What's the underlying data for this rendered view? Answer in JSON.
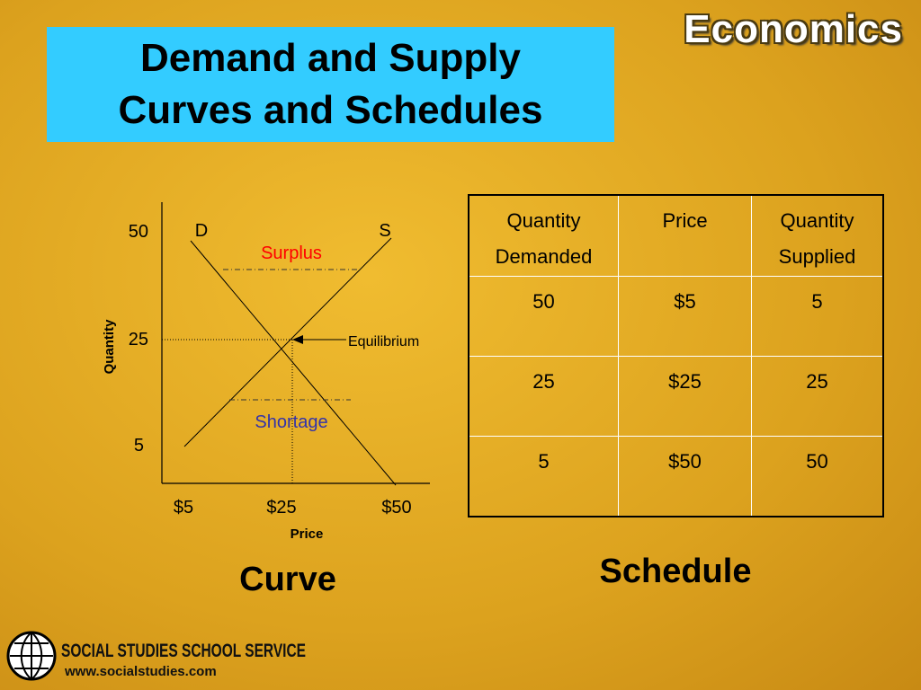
{
  "header": {
    "title_line1": "Demand and Supply",
    "title_line2": "Curves and Schedules",
    "badge": "Economics"
  },
  "curve": {
    "y_axis_label": "Quantity",
    "x_axis_label": "Price",
    "y_labels": [
      50,
      25,
      5
    ],
    "x_labels": [
      "$5",
      "$25",
      "$50"
    ],
    "demand_label": "D",
    "supply_label": "S",
    "surplus": "Surplus",
    "shortage": "Shortage",
    "equilibrium": "Equilibrium",
    "caption": "Curve"
  },
  "table": {
    "headers": [
      [
        "Quantity",
        "Demanded"
      ],
      [
        "Price"
      ],
      [
        "Quantity",
        "Supplied"
      ]
    ],
    "rows": [
      [
        50,
        "$5",
        5
      ],
      [
        25,
        "$25",
        25
      ],
      [
        5,
        "$50",
        50
      ]
    ],
    "caption": "Schedule"
  },
  "footer": {
    "brand": "SOCIAL STUDIES SCHOOL SERVICE",
    "url": "www.socialstudies.com"
  }
}
